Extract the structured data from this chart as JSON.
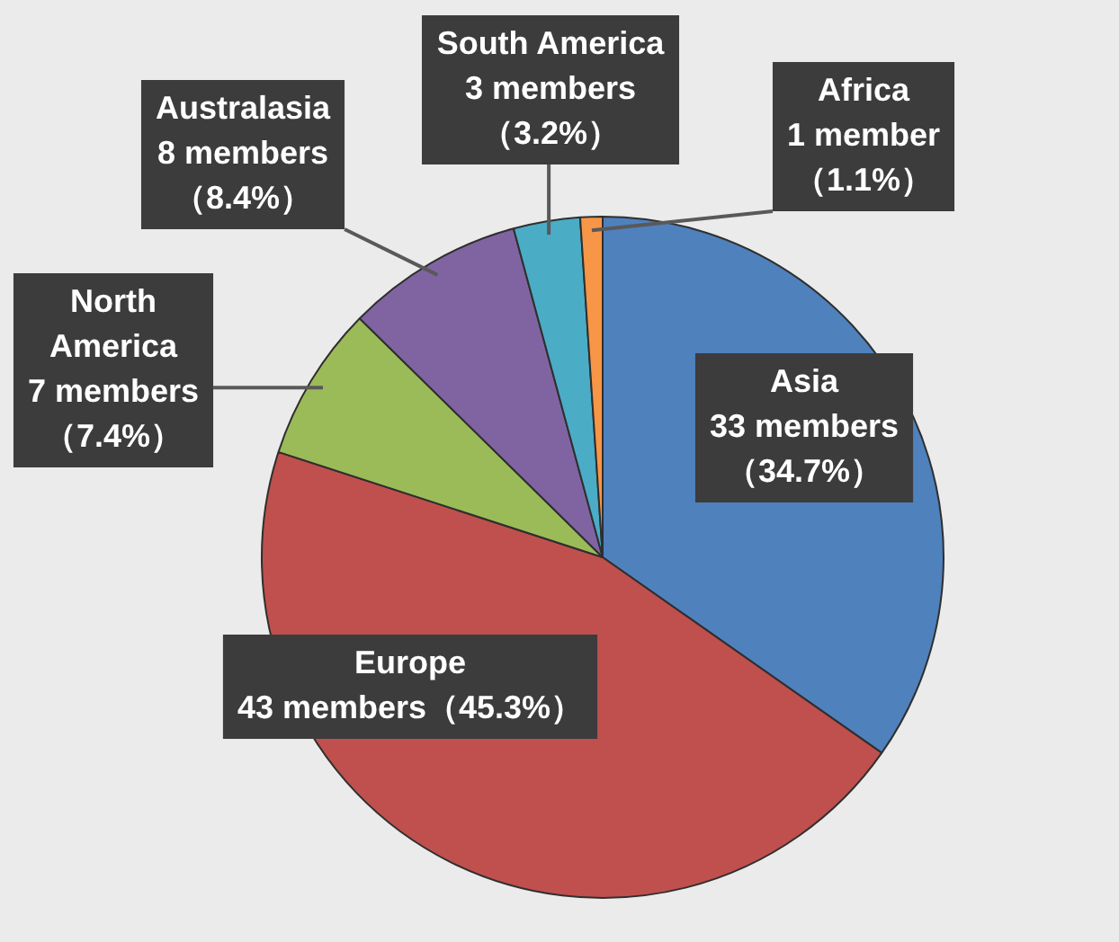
{
  "chart_data": {
    "type": "pie",
    "categories": [
      "Asia",
      "Europe",
      "North America",
      "Australasia",
      "South America",
      "Africa"
    ],
    "values": [
      33,
      43,
      7,
      8,
      3,
      1
    ],
    "colors": [
      "#4f81bd",
      "#c0504d",
      "#9bbb59",
      "#8064a2",
      "#4bacc6",
      "#f79646"
    ],
    "value_labels": [
      "33 members（34.7%）",
      "43 members（45.3%）",
      "7 members（7.4%）",
      "8 members（8.4%）",
      "3 members（3.2%）",
      "1 member（1.1%）"
    ]
  }
}
